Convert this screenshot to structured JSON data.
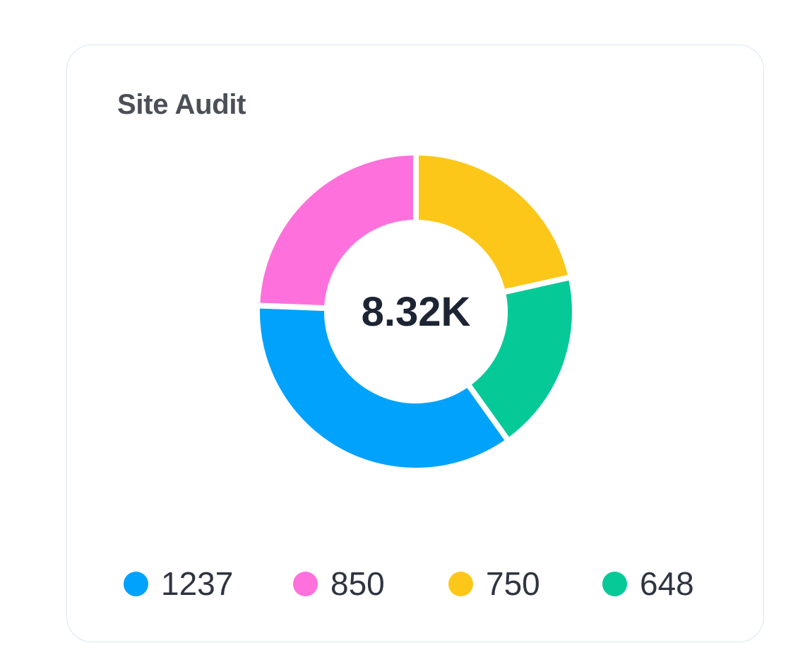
{
  "card": {
    "title": "Site Audit"
  },
  "chart_data": {
    "type": "pie",
    "title": "Site Audit",
    "center_label": "8.32K",
    "hole": "donut",
    "legend_position": "bottom",
    "slices": [
      {
        "value": 750,
        "color": "#fcc719"
      },
      {
        "value": 648,
        "color": "#06c998"
      },
      {
        "value": 1237,
        "color": "#00a2fb"
      },
      {
        "value": 850,
        "color": "#fe71dd"
      }
    ]
  },
  "legend": [
    {
      "value": "1237",
      "color": "#00a2fb"
    },
    {
      "value": "850",
      "color": "#fe71dd"
    },
    {
      "value": "750",
      "color": "#fcc719"
    },
    {
      "value": "648",
      "color": "#06c998"
    }
  ]
}
